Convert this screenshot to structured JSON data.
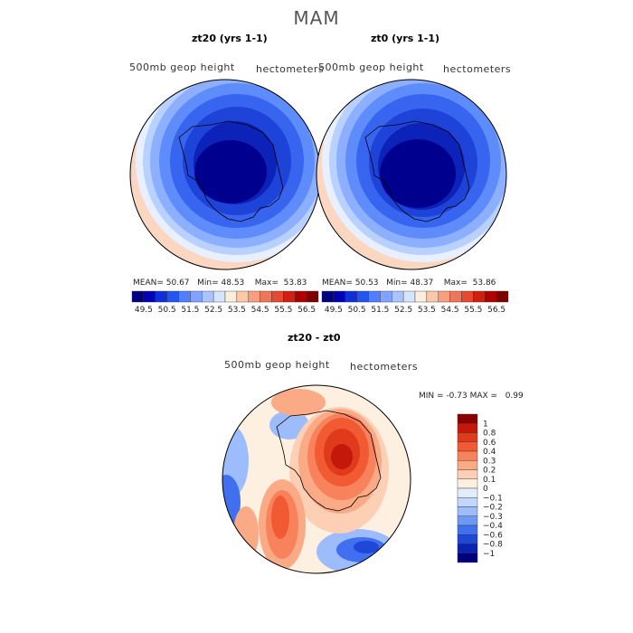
{
  "figure_title": "MAM",
  "panels": [
    {
      "title": "zt20 (yrs 1-1)",
      "left_label": "500mb geop height",
      "right_label": "hectometers",
      "mean_label": "MEAN=",
      "mean": "50.67",
      "min_label": "Min=",
      "min": "48.53",
      "max_label": "Max=",
      "max": "53.83"
    },
    {
      "title": "zt0 (yrs 1-1)",
      "left_label": "500mb geop height",
      "right_label": "hectometers",
      "mean_label": "MEAN=",
      "mean": "50.53",
      "min_label": "Min=",
      "min": "48.37",
      "max_label": "Max=",
      "max": "53.86"
    }
  ],
  "colorbar_ticks": [
    "49.5",
    "50.5",
    "51.5",
    "52.5",
    "53.5",
    "54.5",
    "55.5",
    "56.5"
  ],
  "colorbar_colors": [
    "#00007f",
    "#0000b4",
    "#0f2fd9",
    "#2157f0",
    "#4f7fff",
    "#7fa3ff",
    "#aac4ff",
    "#d6e4ff",
    "#fdeddc",
    "#fbc8a9",
    "#f79f7e",
    "#f0765a",
    "#e54b33",
    "#d0200f",
    "#b00000",
    "#7f0000"
  ],
  "diff_panel": {
    "title": "zt20 - zt0",
    "left_label": "500mb geop height",
    "right_label": "hectometers",
    "min_label": "MIN =",
    "min": "-0.73",
    "max_label": "MAX =",
    "max": "0.99",
    "legend_labels": [
      "1",
      "0.8",
      "0.6",
      "0.4",
      "0.3",
      "0.2",
      "0.1",
      "0",
      "−0.1",
      "−0.2",
      "−0.3",
      "−0.4",
      "−0.6",
      "−0.8",
      "−1"
    ],
    "legend_colors": [
      "#8b0000",
      "#c4180a",
      "#e03a1c",
      "#f25a34",
      "#f7825c",
      "#fbaa86",
      "#fdd0b6",
      "#fdf0e0",
      "#e3ecfb",
      "#c3d6fb",
      "#9cbcfb",
      "#6e98f5",
      "#4070ef",
      "#1f47d8",
      "#0c22b0",
      "#00007f"
    ]
  }
}
